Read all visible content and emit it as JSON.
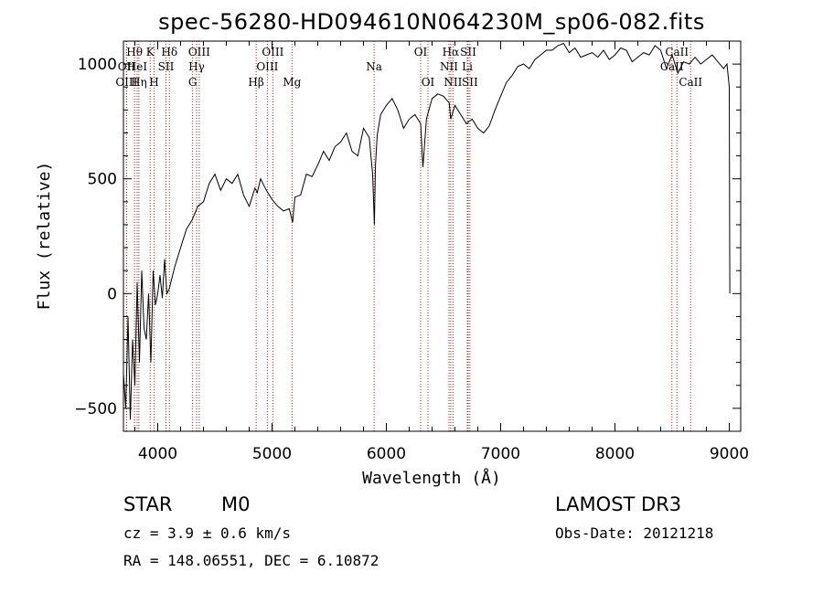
{
  "chart_data": {
    "type": "line",
    "title": "spec-56280-HD094610N064230M_sp06-082.fits",
    "xlabel": "Wavelength (Å)",
    "ylabel": "Flux (relative)",
    "xlim": [
      3700,
      9100
    ],
    "ylim": [
      -600,
      1100
    ],
    "xticks": [
      "4000",
      "5000",
      "6000",
      "7000",
      "8000",
      "9000"
    ],
    "yticks": [
      "1000",
      "500",
      "0",
      "−500"
    ],
    "series": [
      {
        "name": "flux",
        "x": [
          3700,
          3720,
          3740,
          3760,
          3780,
          3800,
          3820,
          3840,
          3860,
          3880,
          3900,
          3920,
          3940,
          3960,
          3980,
          4000,
          4020,
          4040,
          4060,
          4080,
          4100,
          4150,
          4200,
          4250,
          4300,
          4350,
          4400,
          4450,
          4500,
          4550,
          4600,
          4650,
          4700,
          4750,
          4800,
          4850,
          4870,
          4900,
          4950,
          5000,
          5050,
          5100,
          5150,
          5180,
          5200,
          5250,
          5300,
          5350,
          5400,
          5450,
          5500,
          5550,
          5600,
          5650,
          5700,
          5750,
          5800,
          5850,
          5880,
          5895,
          5905,
          5920,
          5950,
          6000,
          6050,
          6100,
          6150,
          6200,
          6250,
          6300,
          6320,
          6350,
          6400,
          6450,
          6500,
          6550,
          6563,
          6600,
          6650,
          6700,
          6750,
          6800,
          6850,
          6900,
          6950,
          7000,
          7050,
          7100,
          7150,
          7200,
          7250,
          7300,
          7350,
          7400,
          7450,
          7500,
          7550,
          7600,
          7650,
          7700,
          7750,
          7800,
          7850,
          7900,
          7950,
          8000,
          8050,
          8100,
          8150,
          8200,
          8250,
          8300,
          8350,
          8400,
          8450,
          8500,
          8550,
          8600,
          8650,
          8700,
          8750,
          8800,
          8850,
          8900,
          8950,
          8980,
          9000,
          9005
        ],
        "y": [
          -350,
          -500,
          -100,
          -550,
          -200,
          -400,
          50,
          -300,
          100,
          -150,
          -200,
          0,
          -300,
          100,
          -50,
          0,
          80,
          -20,
          150,
          0,
          20,
          120,
          200,
          280,
          320,
          380,
          400,
          480,
          520,
          450,
          500,
          480,
          520,
          430,
          380,
          460,
          440,
          500,
          450,
          410,
          380,
          360,
          370,
          310,
          420,
          430,
          520,
          510,
          560,
          620,
          580,
          640,
          660,
          700,
          620,
          600,
          720,
          680,
          520,
          300,
          560,
          690,
          780,
          820,
          850,
          800,
          720,
          760,
          780,
          740,
          550,
          760,
          850,
          870,
          860,
          830,
          760,
          820,
          780,
          740,
          760,
          720,
          700,
          730,
          800,
          860,
          920,
          950,
          990,
          1000,
          980,
          1020,
          1040,
          1060,
          1060,
          1080,
          1090,
          1050,
          1070,
          1030,
          1040,
          1050,
          1030,
          1060,
          1020,
          1040,
          1070,
          1060,
          1010,
          1030,
          1050,
          1040,
          1080,
          1060,
          980,
          1040,
          960,
          1010,
          1000,
          1030,
          1000,
          1020,
          1040,
          1010,
          980,
          1000,
          900,
          0
        ]
      }
    ],
    "lines": [
      {
        "label": "Hθ",
        "wl": 3797,
        "row": 1
      },
      {
        "label": "OII",
        "wl": 3727,
        "row": 2
      },
      {
        "label": "OIII",
        "wl": 3727,
        "row": 3
      },
      {
        "label": "HeI",
        "wl": 3820,
        "row": 2
      },
      {
        "label": "Hη",
        "wl": 3835,
        "row": 3
      },
      {
        "label": "K",
        "wl": 3934,
        "row": 1
      },
      {
        "label": "SII",
        "wl": 4072,
        "row": 2
      },
      {
        "label": "H",
        "wl": 3968,
        "row": 3
      },
      {
        "label": "Hδ",
        "wl": 4102,
        "row": 1
      },
      {
        "label": "OIII",
        "wl": 4363,
        "row": 1
      },
      {
        "label": "Hγ",
        "wl": 4340,
        "row": 2
      },
      {
        "label": "G",
        "wl": 4305,
        "row": 3
      },
      {
        "label": "Hβ",
        "wl": 4861,
        "row": 3
      },
      {
        "label": "OIII",
        "wl": 5007,
        "row": 1
      },
      {
        "label": "OIII",
        "wl": 4959,
        "row": 2
      },
      {
        "label": "Mg",
        "wl": 5175,
        "row": 3
      },
      {
        "label": "Na",
        "wl": 5893,
        "row": 2
      },
      {
        "label": "OI",
        "wl": 6300,
        "row": 1
      },
      {
        "label": "OI",
        "wl": 6364,
        "row": 3
      },
      {
        "label": "Hα",
        "wl": 6563,
        "row": 1
      },
      {
        "label": "NII",
        "wl": 6548,
        "row": 2
      },
      {
        "label": "NII",
        "wl": 6583,
        "row": 3
      },
      {
        "label": "SII",
        "wl": 6716,
        "row": 1
      },
      {
        "label": "Li",
        "wl": 6708,
        "row": 2
      },
      {
        "label": "SII",
        "wl": 6731,
        "row": 3
      },
      {
        "label": "CaII",
        "wl": 8542,
        "row": 1
      },
      {
        "label": "CaII",
        "wl": 8498,
        "row": 2
      },
      {
        "label": "CaII",
        "wl": 8662,
        "row": 3
      }
    ]
  },
  "info": {
    "class": "STAR",
    "subclass": "M0",
    "survey": "LAMOST DR3",
    "cz": "cz = 3.9 ± 0.6 km/s",
    "obsdate": "Obs-Date: 20121218",
    "radec": "RA = 148.06551, DEC =   6.10872"
  },
  "colors": {
    "axis": "#000000",
    "spectrum": "#000000",
    "linemarker": "#b22222"
  }
}
